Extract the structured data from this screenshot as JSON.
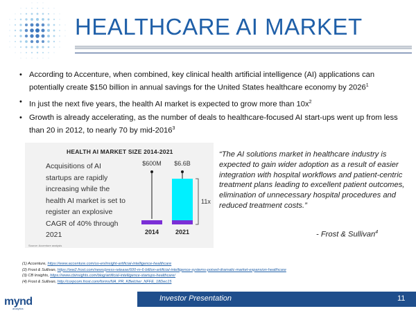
{
  "header": {
    "title": "HEALTHCARE AI MARKET"
  },
  "bullets": [
    {
      "text": "According to Accenture, when combined, key clinical health artificial intelligence (AI) applications can potentially create $150 billion in annual savings for the United States healthcare economy by 2026",
      "ref": "1"
    },
    {
      "text": "In just the next five years, the health AI market is expected to grow more than 10x",
      "ref": "2"
    },
    {
      "text": "Growth is already accelerating, as the number of deals to healthcare-focused AI start-ups went up from less than 20 in 2012, to nearly 70 by mid-2016",
      "ref": "3"
    }
  ],
  "chart_data": {
    "type": "bar",
    "title": "HEALTH AI MARKET SIZE 2014-2021",
    "description": "Acquisitions of AI startups are rapidly increasing while the health AI market is set to register an explosive CAGR of 40% through 2021",
    "categories": [
      "2014",
      "2021"
    ],
    "values": [
      0.6,
      6.6
    ],
    "value_labels": [
      "$600M",
      "$6.6B"
    ],
    "growth_label": "11x",
    "source": "Source: Accenture analysis",
    "ylim": [
      0,
      6.6
    ],
    "colors": {
      "bar": "#00f0ff",
      "base": "#7b2fd6",
      "marker": "#1a1a1a"
    }
  },
  "quote": {
    "text": "“The AI solutions market in healthcare industry is expected to gain wider adoption as a result of easier integration with hospital workflows and patient-centric treatment plans leading to excellent patient outcomes, elimination of unnecessary hospital procedures and reduced treatment costs.”",
    "attribution": "- Frost & Sullivan",
    "ref": "4"
  },
  "footnotes": [
    {
      "prefix": "(1) Accenture, ",
      "link": "https://www.accenture.com/us-en/insight-artificial-intelligence-healthcare"
    },
    {
      "prefix": "(2) Frost & Sullivan, ",
      "link": "https://ww2.frost.com/news/press-release/600-m-6-billion-artificial-intelligence-systems-poised-dramatic-market-expansion-healthcare"
    },
    {
      "prefix": "(3) CB Insights, ",
      "link": "https://www.cbinsights.com/blog/artificial-intelligence-startups-healthcare/"
    },
    {
      "prefix": "(4) Frost & Sullivan, ",
      "link": "http://corpcom.frost.com/forms/NA_PR_KBelcher_NFFE_18Dec15"
    }
  ],
  "footer": {
    "label": "Investor Presentation",
    "page": "11",
    "brand": "mynd",
    "brand_sub": "analytics"
  },
  "colors": {
    "accent": "#1f5fa8",
    "footer_bar": "#1f4e8c"
  }
}
